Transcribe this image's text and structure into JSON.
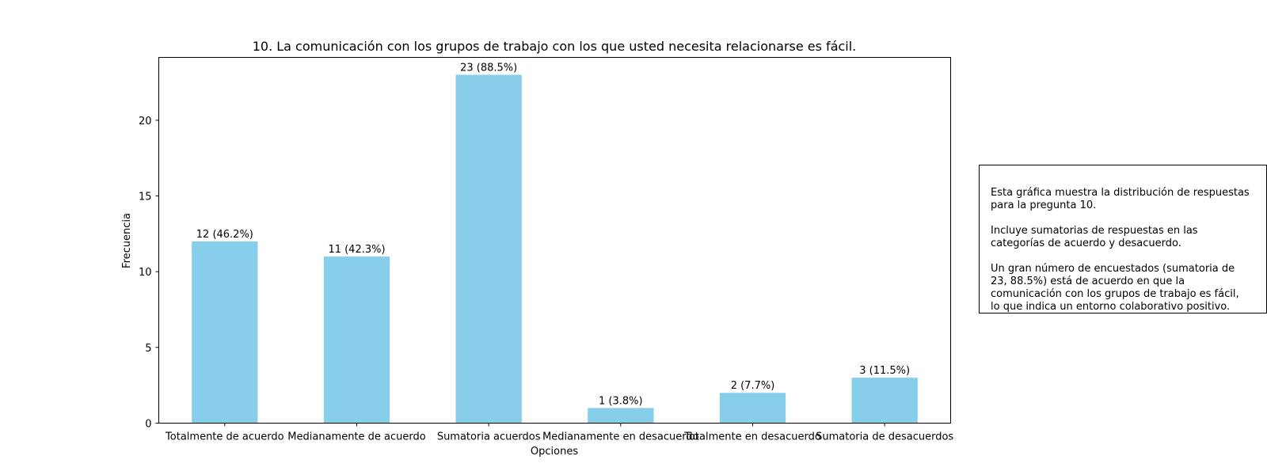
{
  "chart_data": {
    "type": "bar",
    "title": "10. La comunicación con los grupos de trabajo con los que usted necesita relacionarse es fácil.",
    "xlabel": "Opciones",
    "ylabel": "Frecuencia",
    "categories": [
      "Totalmente de acuerdo",
      "Medianamente de acuerdo",
      "Sumatoria acuerdos",
      "Medianamente en desacuerdo",
      "Totalmente en desacuerdo",
      "Sumatoria de desacuerdos"
    ],
    "values": [
      12,
      11,
      23,
      1,
      2,
      3
    ],
    "data_labels": [
      "12 (46.2%)",
      "11 (42.3%)",
      "23 (88.5%)",
      "1 (3.8%)",
      "2 (7.7%)",
      "3 (11.5%)"
    ],
    "yticks": [
      0,
      5,
      10,
      15,
      20
    ],
    "ylim": [
      0,
      24.15
    ],
    "grid": false,
    "bar_color": "#87CEEB"
  },
  "annotation": {
    "text": "Esta gráfica muestra la distribución de respuestas\npara la pregunta 10.\n\nIncluye sumatorias de respuestas en las\ncategorías de acuerdo y desacuerdo.\n\nUn gran número de encuestados (sumatoria de\n23, 88.5%) está de acuerdo en que la\ncomunicación con los grupos de trabajo es fácil,\nlo que indica un entorno colaborativo positivo."
  }
}
